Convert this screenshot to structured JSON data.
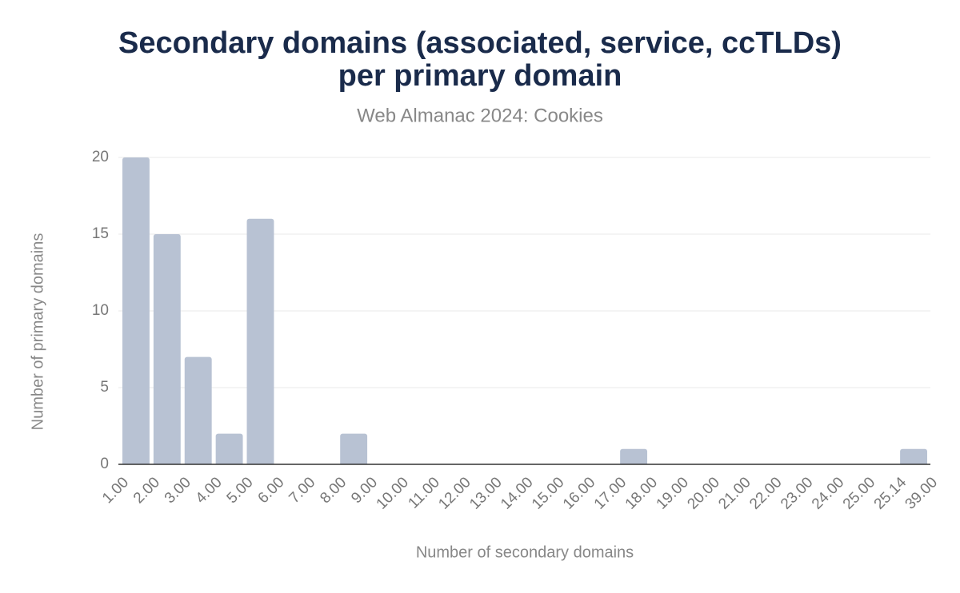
{
  "chart_data": {
    "type": "histogram",
    "title": [
      "Secondary domains (associated, service, ccTLDs)",
      "per primary domain"
    ],
    "subtitle": "Web Almanac 2024: Cookies",
    "x_label": "Number of secondary domains",
    "y_label": "Number of primary domains",
    "bins": [
      "1.00",
      "2.00",
      "3.00",
      "4.00",
      "5.00",
      "6.00",
      "7.00",
      "8.00",
      "9.00",
      "10.00",
      "11.00",
      "12.00",
      "13.00",
      "14.00",
      "15.00",
      "16.00",
      "17.00",
      "18.00",
      "19.00",
      "20.00",
      "21.00",
      "22.00",
      "23.00",
      "24.00",
      "25.00",
      "25.14",
      "39.00"
    ],
    "values": [
      20,
      15,
      7,
      2,
      16,
      0,
      0,
      2,
      0,
      0,
      0,
      0,
      0,
      0,
      0,
      0,
      1,
      0,
      0,
      0,
      0,
      0,
      0,
      0,
      0,
      1
    ],
    "color": "#b8c2d3",
    "ylim": [
      0,
      20
    ],
    "yticks": [
      0,
      5,
      10,
      15,
      20
    ],
    "grid": true
  }
}
